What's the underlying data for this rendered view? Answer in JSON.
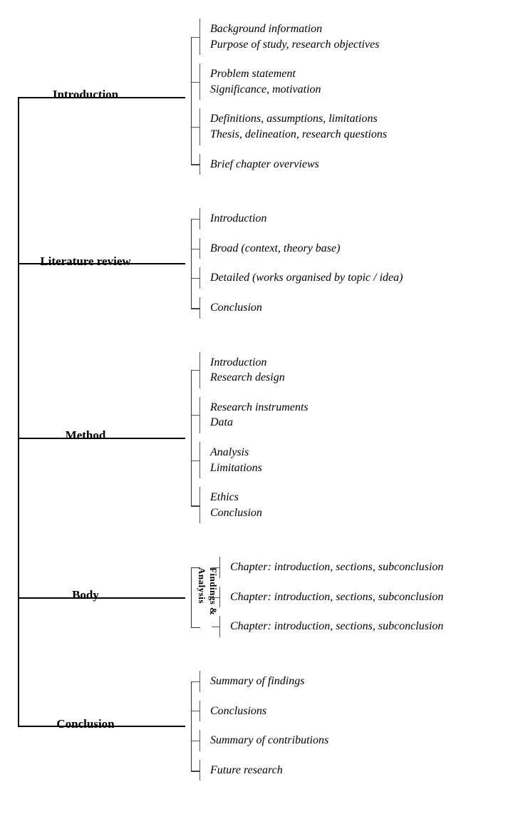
{
  "diagram": {
    "type": "tree",
    "background_color": "#ffffff",
    "line_color": "#000000",
    "tick_color": "#555555",
    "section_label_style": {
      "font_weight": "bold",
      "font_style": "normal",
      "font_size_pt": 13
    },
    "item_style": {
      "font_style": "italic",
      "font_size_pt": 12,
      "color": "#000000"
    },
    "sections": [
      {
        "label": "Introduction",
        "groups": [
          {
            "lines": [
              "Background information",
              "Purpose of study, research objectives"
            ]
          },
          {
            "lines": [
              "Problem statement",
              "Significance, motivation"
            ]
          },
          {
            "lines": [
              "Definitions, assumptions, limitations",
              "Thesis, delineation, research questions"
            ]
          },
          {
            "lines": [
              "Brief chapter overviews"
            ]
          }
        ]
      },
      {
        "label": "Literature review",
        "groups": [
          {
            "lines": [
              "Introduction"
            ]
          },
          {
            "lines": [
              "Broad (context, theory base)"
            ]
          },
          {
            "lines": [
              "Detailed (works organised by topic / idea)"
            ]
          },
          {
            "lines": [
              "Conclusion"
            ]
          }
        ]
      },
      {
        "label": "Method",
        "groups": [
          {
            "lines": [
              "Introduction",
              "Research design"
            ]
          },
          {
            "lines": [
              "Research instruments",
              "Data"
            ]
          },
          {
            "lines": [
              "Analysis",
              "Limitations"
            ]
          },
          {
            "lines": [
              "Ethics",
              "Conclusion"
            ]
          }
        ]
      },
      {
        "label": "Body",
        "vertical_label": "Findings & Analysis",
        "groups": [
          {
            "lines": [
              "Chapter:  introduction, sections, subconclusion"
            ]
          },
          {
            "lines": [
              "Chapter:  introduction, sections, subconclusion"
            ]
          },
          {
            "lines": [
              "Chapter:  introduction, sections, subconclusion"
            ]
          }
        ]
      },
      {
        "label": "Conclusion",
        "groups": [
          {
            "lines": [
              "Summary of findings"
            ]
          },
          {
            "lines": [
              "Conclusions"
            ]
          },
          {
            "lines": [
              "Summary of contributions"
            ]
          },
          {
            "lines": [
              "Future research"
            ]
          }
        ]
      }
    ]
  }
}
